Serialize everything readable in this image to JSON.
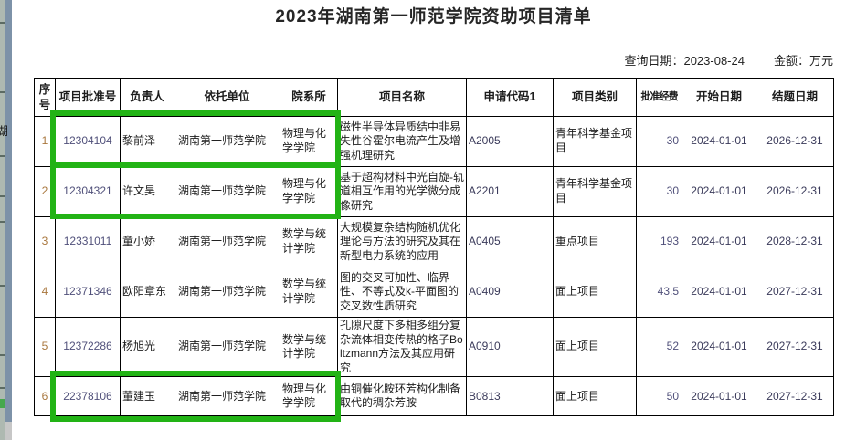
{
  "title": "2023年湖南第一师范学院资助项目清单",
  "meta": {
    "query_date_label": "查询日期：",
    "query_date": "2023-08-24",
    "amount_label": "金额：",
    "amount_unit": "万元"
  },
  "table": {
    "headers": [
      "序号",
      "项目批准号",
      "负责人",
      "依托单位",
      "院系所",
      "项目名称",
      "申请代码1",
      "项目类别",
      "批准经费",
      "开始日期",
      "结题日期"
    ],
    "rows": [
      [
        "1",
        "12304104",
        "黎前泽",
        "湖南第一师范学院",
        "物理与化学学院",
        "磁性半导体异质结中非易失性谷霍尔电流产生及增强机理研究",
        "A2005",
        "青年科学基金项目",
        "30",
        "2024-01-01",
        "2026-12-31"
      ],
      [
        "2",
        "12304321",
        "许文昊",
        "湖南第一师范学院",
        "物理与化学学院",
        "基于超构材料中光自旋-轨道相互作用的光学微分成像研究",
        "A2201",
        "青年科学基金项目",
        "30",
        "2024-01-01",
        "2026-12-31"
      ],
      [
        "3",
        "12331011",
        "童小娇",
        "湖南第一师范学院",
        "数学与统计学院",
        "大规模复杂结构随机优化理论与方法的研究及其在新型电力系统的应用",
        "A0405",
        "重点项目",
        "193",
        "2024-01-01",
        "2028-12-31"
      ],
      [
        "4",
        "12371346",
        "欧阳章东",
        "湖南第一师范学院",
        "数学与统计学院",
        "图的交叉可加性、临界性、不等式及k-平面图的交叉数性质研究",
        "A0409",
        "面上项目",
        "43.5",
        "2024-01-01",
        "2027-12-31"
      ],
      [
        "5",
        "12372286",
        "杨旭光",
        "湖南第一师范学院",
        "数学与统计学院",
        "孔隙尺度下多相多组分复杂流体相变传热的格子Boltzmann方法及其应用研究",
        "A0910",
        "面上项目",
        "52",
        "2024-01-01",
        "2027-12-31"
      ],
      [
        "6",
        "22378106",
        "董建玉",
        "湖南第一师范学院",
        "物理与化学学院",
        "由铜催化胺环芳构化制备取代的稠杂芳胺",
        "B0813",
        "面上项目",
        "50",
        "2024-01-01",
        "2027-12-31"
      ]
    ]
  },
  "annotations": {
    "highlight_color": "#22b315",
    "highlighted_rows": [
      1,
      2,
      6
    ],
    "highlighted_columns": [
      "项目批准号",
      "负责人",
      "依托单位",
      "院系所"
    ]
  },
  "background_window": {
    "partial_text": "湖"
  }
}
